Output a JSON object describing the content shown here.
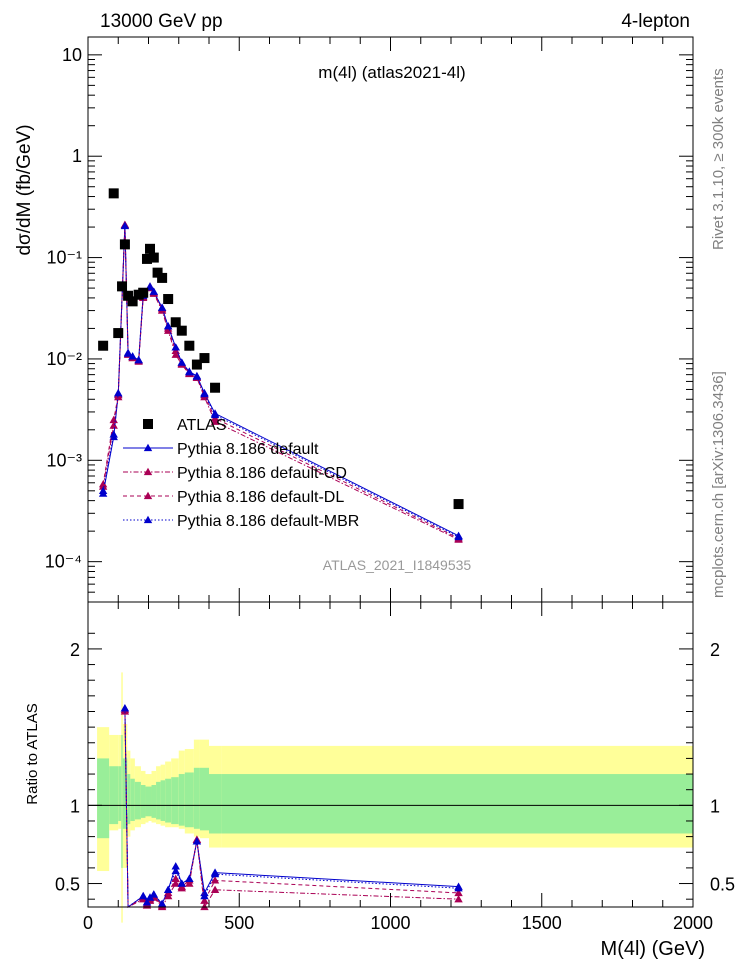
{
  "header": {
    "left_label": "13000 GeV pp",
    "right_label": "4-lepton",
    "side_rivet": "Rivet 3.1.10, ≥ 300k events",
    "side_mcplots": "mcplots.cern.ch [arXiv:1306.3436]"
  },
  "chart_data": [
    {
      "type": "scatter",
      "title": "m(4l) (atlas2021-4l)",
      "ylabel": "dσ/dM (fb/GeV)",
      "xlabel": "",
      "watermark": "ATLAS_2021_I1849535",
      "y_scale": "log",
      "xlim": [
        0,
        2000
      ],
      "ylim": [
        4e-05,
        15
      ],
      "y_ticks": [
        {
          "value": 10,
          "label": "10"
        },
        {
          "value": 1,
          "label": "1"
        },
        {
          "value": 0.1,
          "label": "10⁻¹"
        },
        {
          "value": 0.01,
          "label": "10⁻²"
        },
        {
          "value": 0.001,
          "label": "10⁻³"
        },
        {
          "value": 0.0001,
          "label": "10⁻⁴"
        }
      ],
      "legend_position": "bottom-left",
      "series": [
        {
          "name": "ATLAS",
          "color": "#000000",
          "marker": "square",
          "x": [
            50,
            85,
            100,
            112.5,
            122,
            132.5,
            147.5,
            167.5,
            182.5,
            195,
            205,
            217.5,
            230,
            245,
            265,
            290,
            310,
            335,
            360,
            385,
            420,
            1225
          ],
          "y": [
            0.0135,
            0.43,
            0.018,
            0.052,
            0.135,
            0.042,
            0.037,
            0.043,
            0.045,
            0.097,
            0.122,
            0.1,
            0.071,
            0.063,
            0.039,
            0.023,
            0.019,
            0.0135,
            0.0088,
            0.0102,
            0.0052,
            0.00037
          ]
        },
        {
          "name": "Pythia 8.186 default",
          "color": "#0000cc",
          "line": "solid",
          "x": [
            50,
            85,
            100,
            122,
            132.5,
            147.5,
            167.5,
            182.5,
            205,
            217.5,
            245,
            265,
            290,
            310,
            335,
            360,
            385,
            420,
            1225
          ],
          "y": [
            0.00047,
            0.0017,
            0.0045,
            0.21,
            0.0115,
            0.0105,
            0.0098,
            0.043,
            0.052,
            0.046,
            0.032,
            0.021,
            0.013,
            0.0092,
            0.0075,
            0.0068,
            0.0046,
            0.0029,
            0.00018
          ]
        },
        {
          "name": "Pythia 8.186 default-CD",
          "color": "#aa0055",
          "line": "dashdot",
          "x": [
            50,
            85,
            100,
            122,
            132.5,
            147.5,
            167.5,
            182.5,
            205,
            217.5,
            245,
            265,
            290,
            310,
            335,
            360,
            385,
            420,
            1225
          ],
          "y": [
            0.00055,
            0.0022,
            0.0042,
            0.21,
            0.011,
            0.0102,
            0.0094,
            0.04,
            0.05,
            0.044,
            0.03,
            0.019,
            0.011,
            0.0088,
            0.0071,
            0.0065,
            0.0042,
            0.0024,
            0.000165
          ]
        },
        {
          "name": "Pythia 8.186 default-DL",
          "color": "#aa0055",
          "line": "dashed",
          "x": [
            50,
            85,
            100,
            122,
            132.5,
            147.5,
            167.5,
            182.5,
            205,
            217.5,
            245,
            265,
            290,
            310,
            335,
            360,
            385,
            420,
            1225
          ],
          "y": [
            0.00058,
            0.0025,
            0.0044,
            0.21,
            0.0112,
            0.0104,
            0.0096,
            0.041,
            0.051,
            0.045,
            0.031,
            0.02,
            0.012,
            0.009,
            0.0072,
            0.0066,
            0.0044,
            0.0026,
            0.00017
          ]
        },
        {
          "name": "Pythia 8.186 default-MBR",
          "color": "#0000cc",
          "line": "dotted",
          "x": [
            50,
            85,
            100,
            122,
            132.5,
            147.5,
            167.5,
            182.5,
            205,
            217.5,
            245,
            265,
            290,
            310,
            335,
            360,
            385,
            420,
            1225
          ],
          "y": [
            0.0005,
            0.0018,
            0.0046,
            0.205,
            0.0113,
            0.0106,
            0.0097,
            0.042,
            0.051,
            0.046,
            0.032,
            0.021,
            0.013,
            0.0092,
            0.0074,
            0.0067,
            0.0045,
            0.0028,
            0.000175
          ]
        }
      ]
    },
    {
      "type": "line",
      "ylabel": "Ratio to ATLAS",
      "xlabel": "M(4l) (GeV)",
      "xlim": [
        0,
        2000
      ],
      "ylim": [
        0.35,
        2.3
      ],
      "x_ticks": [
        0,
        500,
        1000,
        1500,
        2000
      ],
      "x_tick_labels": [
        "0",
        "500",
        "1000",
        "1500",
        "2000"
      ],
      "y_ticks": [
        0.5,
        1,
        2
      ],
      "y_tick_labels": [
        "0.5",
        "1",
        "2"
      ],
      "reference_line": 1,
      "bands": {
        "outer_color": "#ffff99",
        "inner_color": "#99ee99",
        "edges": [
          30,
          70,
          100,
          110,
          115,
          130,
          140,
          155,
          175,
          190,
          200,
          210,
          225,
          240,
          255,
          275,
          300,
          320,
          350,
          370,
          400,
          440,
          2000
        ],
        "outer_lo": [
          0.58,
          0.84,
          0.85,
          0.25,
          0.6,
          0.8,
          0.84,
          0.86,
          0.88,
          0.89,
          0.9,
          0.89,
          0.88,
          0.87,
          0.86,
          0.86,
          0.85,
          0.82,
          0.8,
          0.79,
          0.73,
          0.73
        ],
        "outer_hi": [
          1.5,
          1.45,
          1.45,
          1.85,
          1.52,
          1.35,
          1.3,
          1.25,
          1.22,
          1.2,
          1.2,
          1.22,
          1.25,
          1.26,
          1.28,
          1.3,
          1.35,
          1.36,
          1.42,
          1.42,
          1.38,
          1.38
        ],
        "inner_lo": [
          0.79,
          0.88,
          0.9,
          0.6,
          0.85,
          0.88,
          0.9,
          0.91,
          0.92,
          0.93,
          0.93,
          0.92,
          0.91,
          0.9,
          0.89,
          0.88,
          0.87,
          0.86,
          0.85,
          0.84,
          0.82,
          0.82
        ],
        "inner_hi": [
          1.3,
          1.25,
          1.25,
          1.45,
          1.3,
          1.2,
          1.17,
          1.15,
          1.13,
          1.12,
          1.12,
          1.13,
          1.15,
          1.16,
          1.17,
          1.18,
          1.2,
          1.21,
          1.24,
          1.24,
          1.2,
          1.2
        ]
      },
      "series": [
        {
          "name": "Pythia 8.186 default",
          "color": "#0000cc",
          "x": [
            122,
            132.5,
            182.5,
            195,
            205,
            217.5,
            245,
            265,
            290,
            310,
            335,
            360,
            385,
            420,
            1225
          ],
          "y": [
            1.62,
            0.27,
            0.42,
            0.38,
            0.41,
            0.43,
            0.37,
            0.46,
            0.61,
            0.5,
            0.53,
            0.77,
            0.44,
            0.57,
            0.48
          ]
        },
        {
          "name": "Pythia 8.186 default-CD",
          "color": "#aa0055",
          "x": [
            122,
            132.5,
            182.5,
            195,
            205,
            217.5,
            245,
            265,
            290,
            310,
            335,
            360,
            385,
            420,
            1225
          ],
          "y": [
            1.6,
            0.26,
            0.4,
            0.36,
            0.39,
            0.41,
            0.35,
            0.42,
            0.5,
            0.47,
            0.5,
            0.78,
            0.35,
            0.46,
            0.4
          ]
        },
        {
          "name": "Pythia 8.186 default-DL",
          "color": "#aa0055",
          "x": [
            122,
            132.5,
            182.5,
            195,
            205,
            217.5,
            245,
            265,
            290,
            310,
            335,
            360,
            385,
            420,
            1225
          ],
          "y": [
            1.61,
            0.265,
            0.41,
            0.37,
            0.4,
            0.42,
            0.36,
            0.44,
            0.53,
            0.48,
            0.52,
            0.78,
            0.39,
            0.52,
            0.44
          ]
        },
        {
          "name": "Pythia 8.186 default-MBR",
          "color": "#0000cc",
          "x": [
            122,
            132.5,
            182.5,
            195,
            205,
            217.5,
            245,
            265,
            290,
            310,
            335,
            360,
            385,
            420,
            1225
          ],
          "y": [
            1.62,
            0.27,
            0.42,
            0.38,
            0.41,
            0.43,
            0.37,
            0.46,
            0.58,
            0.5,
            0.53,
            0.77,
            0.42,
            0.56,
            0.47
          ]
        }
      ]
    }
  ]
}
